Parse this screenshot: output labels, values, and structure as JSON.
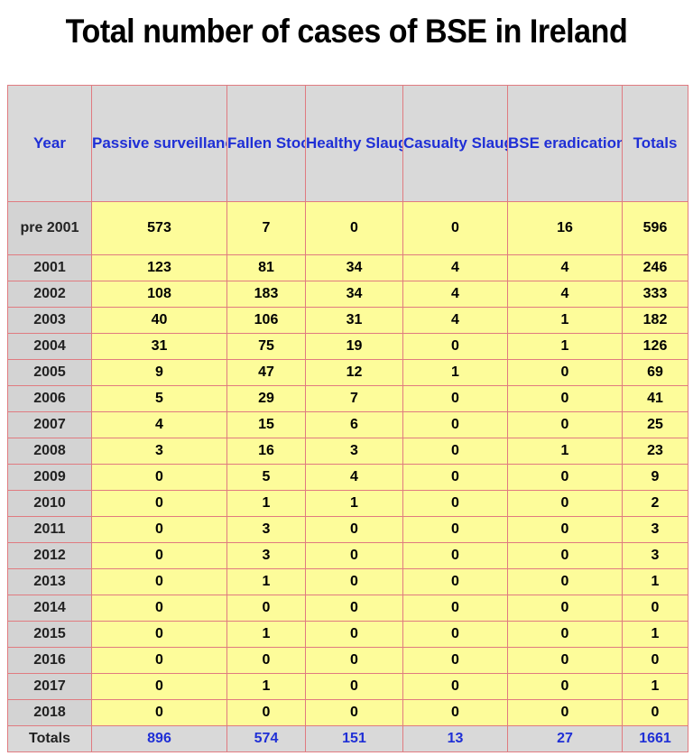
{
  "title": "Total number of cases of BSE in Ireland",
  "colors": {
    "header_text": "#1f2fd6",
    "header_bg": "#d9d9d9",
    "cell_bg": "#fdfc9a",
    "year_bg": "#d3d3d3",
    "grid": "#e07b80"
  },
  "chart_data": {
    "type": "table",
    "title": "Total number of cases of BSE in Ireland",
    "columns": [
      "Year",
      "Passive surveillance",
      "Fallen Stock",
      "Healthy Slaughter",
      "Casualty Slaughter",
      "BSE eradication",
      "Totals"
    ],
    "rows": [
      [
        "pre 2001",
        "573",
        "7",
        "0",
        "0",
        "16",
        "596"
      ],
      [
        "2001",
        "123",
        "81",
        "34",
        "4",
        "4",
        "246"
      ],
      [
        "2002",
        "108",
        "183",
        "34",
        "4",
        "4",
        "333"
      ],
      [
        "2003",
        "40",
        "106",
        "31",
        "4",
        "1",
        "182"
      ],
      [
        "2004",
        "31",
        "75",
        "19",
        "0",
        "1",
        "126"
      ],
      [
        "2005",
        "9",
        "47",
        "12",
        "1",
        "0",
        "69"
      ],
      [
        "2006",
        "5",
        "29",
        "7",
        "0",
        "0",
        "41"
      ],
      [
        "2007",
        "4",
        "15",
        "6",
        "0",
        "0",
        "25"
      ],
      [
        "2008",
        "3",
        "16",
        "3",
        "0",
        "1",
        "23"
      ],
      [
        "2009",
        "0",
        "5",
        "4",
        "0",
        "0",
        "9"
      ],
      [
        "2010",
        "0",
        "1",
        "1",
        "0",
        "0",
        "2"
      ],
      [
        "2011",
        "0",
        "3",
        "0",
        "0",
        "0",
        "3"
      ],
      [
        "2012",
        "0",
        "3",
        "0",
        "0",
        "0",
        "3"
      ],
      [
        "2013",
        "0",
        "1",
        "0",
        "0",
        "0",
        "1"
      ],
      [
        "2014",
        "0",
        "0",
        "0",
        "0",
        "0",
        "0"
      ],
      [
        "2015",
        "0",
        "1",
        "0",
        "0",
        "0",
        "1"
      ],
      [
        "2016",
        "0",
        "0",
        "0",
        "0",
        "0",
        "0"
      ],
      [
        "2017",
        "0",
        "1",
        "0",
        "0",
        "0",
        "1"
      ],
      [
        "2018",
        "0",
        "0",
        "0",
        "0",
        "0",
        "0"
      ]
    ],
    "totals": [
      "Totals",
      "896",
      "574",
      "151",
      "13",
      "27",
      "1661"
    ]
  }
}
